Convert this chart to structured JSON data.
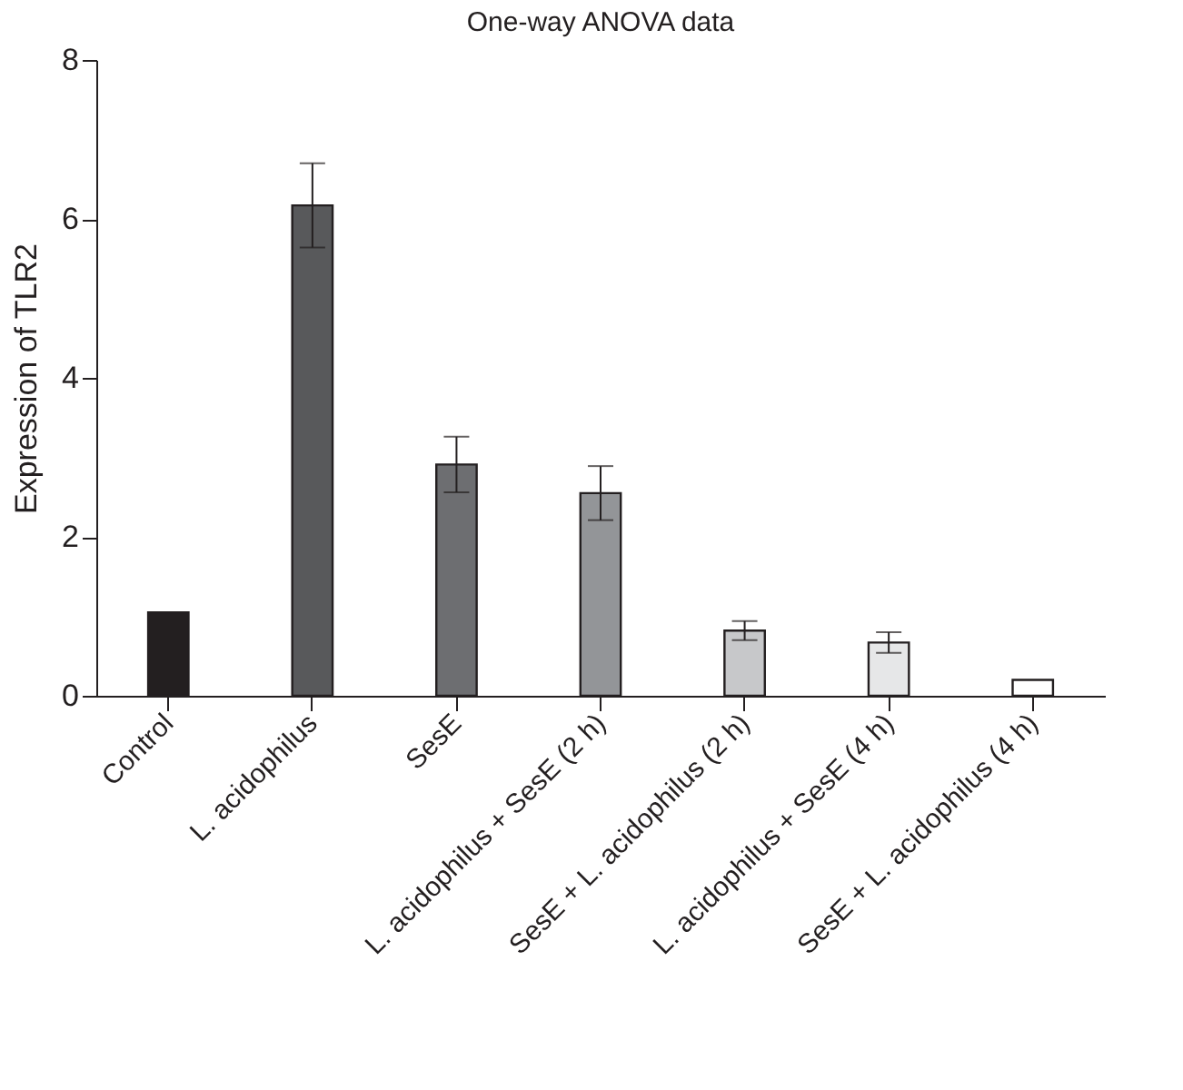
{
  "chart_data": {
    "type": "bar",
    "title": "One-way ANOVA data",
    "ylabel": "Expression of TLR2",
    "categories": [
      "Control",
      "L. acidophilus",
      "SesE",
      "L. acidophilus + SesE (2 h)",
      "SesE + L. acidophilus (2 h)",
      "L. acidophilus + SesE (4 h)",
      "SesE + L. acidophilus (4 h)"
    ],
    "values": [
      1.05,
      6.17,
      2.91,
      2.55,
      0.82,
      0.67,
      0.2
    ],
    "errors": [
      null,
      0.53,
      0.35,
      0.34,
      0.12,
      0.13,
      null
    ],
    "colors": [
      "#231f20",
      "#58595b",
      "#6d6e71",
      "#939598",
      "#c7c8ca",
      "#e6e7e8",
      "#ffffff"
    ],
    "ylim": [
      0,
      8
    ],
    "yticks": [
      0,
      2,
      4,
      6,
      8
    ],
    "grid": false
  }
}
